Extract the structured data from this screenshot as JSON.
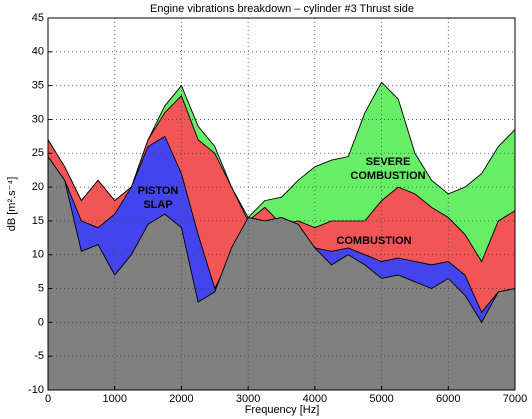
{
  "chart_data": {
    "type": "area",
    "title": "Engine vibrations breakdown – cylinder #3 Thrust side",
    "x_label": "Frequency [Hz]",
    "y_label": "dB [m².s⁻⁴]",
    "x": [
      0,
      250,
      500,
      750,
      1000,
      1250,
      1500,
      1750,
      2000,
      2250,
      2500,
      2750,
      3000,
      3250,
      3500,
      3750,
      4000,
      4250,
      4500,
      4750,
      5000,
      5250,
      5500,
      5750,
      6000,
      6250,
      6500,
      6750,
      7000
    ],
    "series": [
      {
        "color": "#66ee66",
        "values": [
          27,
          23,
          18,
          21,
          18,
          20,
          27,
          32,
          35,
          29,
          26,
          20,
          15.5,
          18,
          18.5,
          21,
          23,
          24,
          24.5,
          31,
          35.5,
          33,
          25,
          21,
          19,
          20,
          22,
          26,
          28.5
        ]
      },
      {
        "color": "#f25555",
        "values": [
          27,
          23,
          18,
          21,
          18,
          20,
          27,
          31,
          33.5,
          27,
          25,
          20,
          15,
          17,
          14.5,
          15,
          14,
          15,
          15,
          15,
          18,
          20,
          19,
          17,
          15.5,
          13,
          9,
          15,
          16.5
        ]
      },
      {
        "color": "#4444ee",
        "values": [
          24.5,
          21,
          15,
          14,
          16,
          20,
          26,
          27.5,
          22,
          13,
          5,
          10,
          15.5,
          15,
          15.5,
          14.5,
          11,
          10.5,
          11,
          10,
          9,
          9.5,
          9,
          8.5,
          9,
          7,
          1.5,
          4.5,
          5
        ]
      },
      {
        "color": "#808080",
        "values": [
          24.5,
          21,
          10.5,
          11.5,
          7,
          10,
          14.5,
          16,
          14,
          3,
          4.5,
          11,
          15.5,
          15,
          15.5,
          14.5,
          11,
          8.5,
          10,
          8.5,
          6.5,
          7,
          6,
          5,
          6.5,
          4,
          0,
          4.5,
          5
        ]
      }
    ],
    "annotations": [
      [
        "PISTON",
        "SLAP"
      ],
      [
        "SEVERE",
        "COMBUSTION"
      ],
      [
        "COMBUSTION"
      ]
    ],
    "xlim": [
      0,
      7000
    ],
    "xticks": [
      0,
      1000,
      2000,
      3000,
      4000,
      5000,
      6000,
      7000
    ],
    "ylim": [
      -10,
      45
    ],
    "yticks": [
      -10,
      -5,
      0,
      5,
      10,
      15,
      20,
      25,
      30,
      35,
      40,
      45
    ],
    "grid": true
  }
}
